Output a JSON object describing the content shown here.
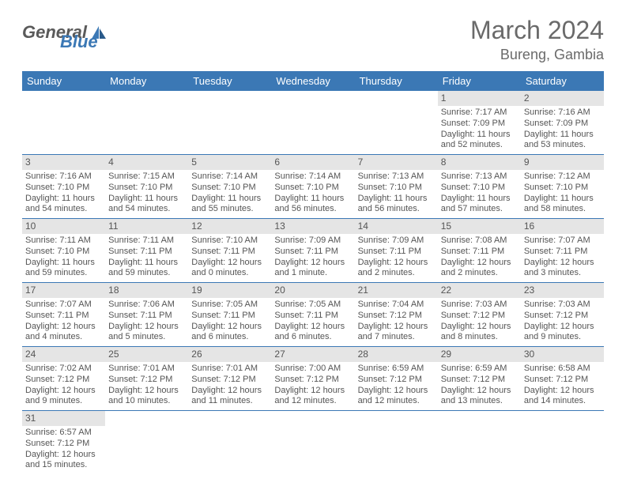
{
  "logo": {
    "text1": "General",
    "text2": "Blue"
  },
  "title": "March 2024",
  "subtitle": "Bureng, Gambia",
  "header_bg": "#3b78b5",
  "day_headers": [
    "Sunday",
    "Monday",
    "Tuesday",
    "Wednesday",
    "Thursday",
    "Friday",
    "Saturday"
  ],
  "weeks": [
    [
      null,
      null,
      null,
      null,
      null,
      {
        "n": "1",
        "sr": "Sunrise: 7:17 AM",
        "ss": "Sunset: 7:09 PM",
        "dl": "Daylight: 11 hours and 52 minutes."
      },
      {
        "n": "2",
        "sr": "Sunrise: 7:16 AM",
        "ss": "Sunset: 7:09 PM",
        "dl": "Daylight: 11 hours and 53 minutes."
      }
    ],
    [
      {
        "n": "3",
        "sr": "Sunrise: 7:16 AM",
        "ss": "Sunset: 7:10 PM",
        "dl": "Daylight: 11 hours and 54 minutes."
      },
      {
        "n": "4",
        "sr": "Sunrise: 7:15 AM",
        "ss": "Sunset: 7:10 PM",
        "dl": "Daylight: 11 hours and 54 minutes."
      },
      {
        "n": "5",
        "sr": "Sunrise: 7:14 AM",
        "ss": "Sunset: 7:10 PM",
        "dl": "Daylight: 11 hours and 55 minutes."
      },
      {
        "n": "6",
        "sr": "Sunrise: 7:14 AM",
        "ss": "Sunset: 7:10 PM",
        "dl": "Daylight: 11 hours and 56 minutes."
      },
      {
        "n": "7",
        "sr": "Sunrise: 7:13 AM",
        "ss": "Sunset: 7:10 PM",
        "dl": "Daylight: 11 hours and 56 minutes."
      },
      {
        "n": "8",
        "sr": "Sunrise: 7:13 AM",
        "ss": "Sunset: 7:10 PM",
        "dl": "Daylight: 11 hours and 57 minutes."
      },
      {
        "n": "9",
        "sr": "Sunrise: 7:12 AM",
        "ss": "Sunset: 7:10 PM",
        "dl": "Daylight: 11 hours and 58 minutes."
      }
    ],
    [
      {
        "n": "10",
        "sr": "Sunrise: 7:11 AM",
        "ss": "Sunset: 7:10 PM",
        "dl": "Daylight: 11 hours and 59 minutes."
      },
      {
        "n": "11",
        "sr": "Sunrise: 7:11 AM",
        "ss": "Sunset: 7:11 PM",
        "dl": "Daylight: 11 hours and 59 minutes."
      },
      {
        "n": "12",
        "sr": "Sunrise: 7:10 AM",
        "ss": "Sunset: 7:11 PM",
        "dl": "Daylight: 12 hours and 0 minutes."
      },
      {
        "n": "13",
        "sr": "Sunrise: 7:09 AM",
        "ss": "Sunset: 7:11 PM",
        "dl": "Daylight: 12 hours and 1 minute."
      },
      {
        "n": "14",
        "sr": "Sunrise: 7:09 AM",
        "ss": "Sunset: 7:11 PM",
        "dl": "Daylight: 12 hours and 2 minutes."
      },
      {
        "n": "15",
        "sr": "Sunrise: 7:08 AM",
        "ss": "Sunset: 7:11 PM",
        "dl": "Daylight: 12 hours and 2 minutes."
      },
      {
        "n": "16",
        "sr": "Sunrise: 7:07 AM",
        "ss": "Sunset: 7:11 PM",
        "dl": "Daylight: 12 hours and 3 minutes."
      }
    ],
    [
      {
        "n": "17",
        "sr": "Sunrise: 7:07 AM",
        "ss": "Sunset: 7:11 PM",
        "dl": "Daylight: 12 hours and 4 minutes."
      },
      {
        "n": "18",
        "sr": "Sunrise: 7:06 AM",
        "ss": "Sunset: 7:11 PM",
        "dl": "Daylight: 12 hours and 5 minutes."
      },
      {
        "n": "19",
        "sr": "Sunrise: 7:05 AM",
        "ss": "Sunset: 7:11 PM",
        "dl": "Daylight: 12 hours and 6 minutes."
      },
      {
        "n": "20",
        "sr": "Sunrise: 7:05 AM",
        "ss": "Sunset: 7:11 PM",
        "dl": "Daylight: 12 hours and 6 minutes."
      },
      {
        "n": "21",
        "sr": "Sunrise: 7:04 AM",
        "ss": "Sunset: 7:12 PM",
        "dl": "Daylight: 12 hours and 7 minutes."
      },
      {
        "n": "22",
        "sr": "Sunrise: 7:03 AM",
        "ss": "Sunset: 7:12 PM",
        "dl": "Daylight: 12 hours and 8 minutes."
      },
      {
        "n": "23",
        "sr": "Sunrise: 7:03 AM",
        "ss": "Sunset: 7:12 PM",
        "dl": "Daylight: 12 hours and 9 minutes."
      }
    ],
    [
      {
        "n": "24",
        "sr": "Sunrise: 7:02 AM",
        "ss": "Sunset: 7:12 PM",
        "dl": "Daylight: 12 hours and 9 minutes."
      },
      {
        "n": "25",
        "sr": "Sunrise: 7:01 AM",
        "ss": "Sunset: 7:12 PM",
        "dl": "Daylight: 12 hours and 10 minutes."
      },
      {
        "n": "26",
        "sr": "Sunrise: 7:01 AM",
        "ss": "Sunset: 7:12 PM",
        "dl": "Daylight: 12 hours and 11 minutes."
      },
      {
        "n": "27",
        "sr": "Sunrise: 7:00 AM",
        "ss": "Sunset: 7:12 PM",
        "dl": "Daylight: 12 hours and 12 minutes."
      },
      {
        "n": "28",
        "sr": "Sunrise: 6:59 AM",
        "ss": "Sunset: 7:12 PM",
        "dl": "Daylight: 12 hours and 12 minutes."
      },
      {
        "n": "29",
        "sr": "Sunrise: 6:59 AM",
        "ss": "Sunset: 7:12 PM",
        "dl": "Daylight: 12 hours and 13 minutes."
      },
      {
        "n": "30",
        "sr": "Sunrise: 6:58 AM",
        "ss": "Sunset: 7:12 PM",
        "dl": "Daylight: 12 hours and 14 minutes."
      }
    ],
    [
      {
        "n": "31",
        "sr": "Sunrise: 6:57 AM",
        "ss": "Sunset: 7:12 PM",
        "dl": "Daylight: 12 hours and 15 minutes."
      },
      null,
      null,
      null,
      null,
      null,
      null
    ]
  ]
}
